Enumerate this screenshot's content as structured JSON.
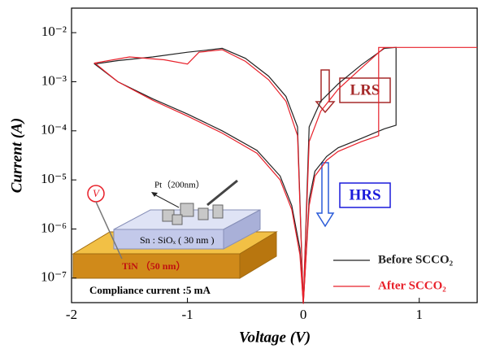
{
  "chart_data": {
    "type": "line",
    "x_label": "Voltage (V)",
    "y_label": "Current (A)",
    "log_y": true,
    "xlim": [
      -2,
      1.5
    ],
    "xticks": [
      -2,
      -1,
      0,
      1
    ],
    "ylim": [
      3.16e-08,
      0.0316
    ],
    "yticks": [
      {
        "value": 0.01,
        "label": "10⁻²"
      },
      {
        "value": 0.001,
        "label": "10⁻³"
      },
      {
        "value": 0.0001,
        "label": "10⁻⁴"
      },
      {
        "value": 1e-05,
        "label": "10⁻⁵"
      },
      {
        "value": 1e-06,
        "label": "10⁻⁶"
      },
      {
        "value": 1e-07,
        "label": "10⁻⁷"
      }
    ],
    "legend_position": "lower right",
    "series": [
      {
        "name": "Before SCCO₂",
        "color": "#222222",
        "x": [
          0,
          0.05,
          0.1,
          0.2,
          0.3,
          0.5,
          0.7,
          0.8,
          0.8,
          0.7,
          0.5,
          0.3,
          0.15,
          0.05,
          0,
          -0.05,
          -0.15,
          -0.3,
          -0.5,
          -0.7,
          -0.8,
          -1,
          -1.3,
          -1.6,
          -1.8,
          -1.6,
          -1.3,
          -1,
          -0.7,
          -0.4,
          -0.2,
          -0.1,
          -0.03,
          0
        ],
        "values": [
          3e-08,
          4e-06,
          1.5e-05,
          3e-05,
          4.5e-05,
          7e-05,
          0.00011,
          0.00013,
          0.005,
          0.0048,
          0.0022,
          0.0009,
          0.0004,
          0.00012,
          3e-08,
          0.00012,
          0.0005,
          0.0013,
          0.003,
          0.0048,
          0.0045,
          0.004,
          0.0032,
          0.0027,
          0.0023,
          0.001,
          0.00045,
          0.00022,
          0.0001,
          4e-05,
          1.2e-05,
          3e-06,
          4e-07,
          3e-08
        ]
      },
      {
        "name": "After SCCO₂",
        "color": "#e8202a",
        "x": [
          0,
          0.05,
          0.1,
          0.2,
          0.3,
          0.5,
          0.65,
          0.65,
          1.5,
          null,
          0.7,
          0.5,
          0.3,
          0.15,
          0.05,
          0,
          -0.05,
          -0.15,
          -0.3,
          -0.5,
          -0.7,
          -0.9,
          -1,
          -1.2,
          -1.5,
          -1.8,
          -1.6,
          -1.3,
          -1,
          -0.7,
          -0.4,
          -0.2,
          -0.1,
          -0.03,
          0
        ],
        "values": [
          3e-08,
          3e-06,
          1.2e-05,
          2.5e-05,
          3.8e-05,
          6e-05,
          8e-05,
          0.005,
          0.005,
          null,
          0.005,
          0.0019,
          0.0007,
          0.00025,
          6e-05,
          3e-08,
          8e-05,
          0.0004,
          0.0011,
          0.0026,
          0.0045,
          0.004,
          0.0023,
          0.0028,
          0.0032,
          0.0024,
          0.001,
          0.00042,
          0.0002,
          9e-05,
          3.5e-05,
          1e-05,
          2.5e-06,
          3e-07,
          3e-08
        ]
      }
    ],
    "annotations": {
      "lrs": "LRS",
      "hrs": "HRS",
      "pt": "Pt（200nm）",
      "sn": "Sn : SiOₓ ( 30 nm )",
      "tin": "TiN （50 nm）",
      "v": "V",
      "compliance": "Compliance current :5 mA"
    }
  }
}
